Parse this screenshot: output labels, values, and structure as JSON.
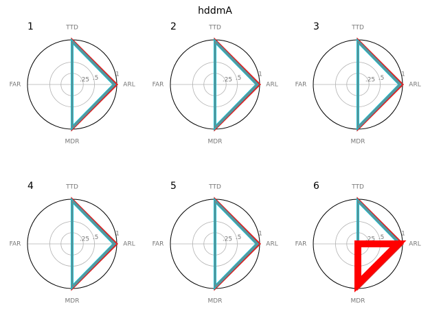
{
  "title": "hddmA",
  "chart_data": [
    {
      "type": "radar",
      "title": "1",
      "categories": [
        "TTD",
        "ARL",
        "MDR",
        "FAR"
      ],
      "ylim": [
        0,
        1
      ],
      "yticks": [
        {
          "value": 0.25,
          "label": ".25"
        },
        {
          "value": 0.5,
          "label": ".5"
        },
        1
      ],
      "series": [
        {
          "color": "#d62728",
          "width": 3,
          "values": [
            1,
            1,
            1,
            0
          ]
        },
        {
          "color": "#17becf",
          "width": 4,
          "values": [
            0.96,
            0.94,
            0.96,
            0
          ]
        },
        {
          "color": "#7f7f7f",
          "width": 1.5,
          "values": [
            0.96,
            0.94,
            0.96,
            0
          ]
        }
      ]
    },
    {
      "type": "radar",
      "title": "2",
      "categories": [
        "TTD",
        "ARL",
        "MDR",
        "FAR"
      ],
      "ylim": [
        0,
        1
      ],
      "yticks": [
        {
          "value": 0.25,
          "label": ".25"
        },
        {
          "value": 0.5,
          "label": ".5"
        },
        1
      ],
      "series": [
        {
          "color": "#d62728",
          "width": 3,
          "values": [
            1,
            1,
            1,
            0
          ]
        },
        {
          "color": "#17becf",
          "width": 4,
          "values": [
            0.96,
            0.94,
            0.96,
            0
          ]
        },
        {
          "color": "#7f7f7f",
          "width": 1.5,
          "values": [
            0.96,
            0.94,
            0.96,
            0
          ]
        }
      ]
    },
    {
      "type": "radar",
      "title": "3",
      "categories": [
        "TTD",
        "ARL",
        "MDR",
        "FAR"
      ],
      "ylim": [
        0,
        1
      ],
      "yticks": [
        {
          "value": 0.25,
          "label": ".25"
        },
        {
          "value": 0.5,
          "label": ".5"
        },
        1
      ],
      "series": [
        {
          "color": "#d62728",
          "width": 3,
          "values": [
            1,
            1,
            1,
            0
          ]
        },
        {
          "color": "#17becf",
          "width": 4,
          "values": [
            0.96,
            0.94,
            0.96,
            0
          ]
        },
        {
          "color": "#7f7f7f",
          "width": 1.5,
          "values": [
            0.96,
            0.94,
            0.96,
            0
          ]
        }
      ]
    },
    {
      "type": "radar",
      "title": "4",
      "categories": [
        "TTD",
        "ARL",
        "MDR",
        "FAR"
      ],
      "ylim": [
        0,
        1
      ],
      "yticks": [
        {
          "value": 0.25,
          "label": ".25"
        },
        {
          "value": 0.5,
          "label": ".5"
        },
        1
      ],
      "series": [
        {
          "color": "#d62728",
          "width": 3,
          "values": [
            1,
            1,
            1,
            0
          ]
        },
        {
          "color": "#17becf",
          "width": 4,
          "values": [
            0.96,
            0.94,
            0.96,
            0
          ]
        },
        {
          "color": "#7f7f7f",
          "width": 1.5,
          "values": [
            0.96,
            0.94,
            0.96,
            0
          ]
        }
      ]
    },
    {
      "type": "radar",
      "title": "5",
      "categories": [
        "TTD",
        "ARL",
        "MDR",
        "FAR"
      ],
      "ylim": [
        0,
        1
      ],
      "yticks": [
        {
          "value": 0.25,
          "label": ".25"
        },
        {
          "value": 0.5,
          "label": ".5"
        },
        1
      ],
      "series": [
        {
          "color": "#d62728",
          "width": 3,
          "values": [
            1,
            1,
            1,
            0
          ]
        },
        {
          "color": "#17becf",
          "width": 4,
          "values": [
            0.96,
            0.94,
            0.96,
            0
          ]
        },
        {
          "color": "#7f7f7f",
          "width": 1.5,
          "values": [
            0.96,
            0.94,
            0.96,
            0
          ]
        }
      ]
    },
    {
      "type": "radar",
      "title": "6",
      "categories": [
        "TTD",
        "ARL",
        "MDR",
        "FAR"
      ],
      "ylim": [
        0,
        1
      ],
      "yticks": [
        {
          "value": 0.25,
          "label": ".25"
        },
        {
          "value": 0.5,
          "label": ".5"
        },
        1
      ],
      "series": [
        {
          "color": "#d62728",
          "width": 3,
          "values": [
            1,
            1,
            1,
            0
          ]
        },
        {
          "color": "#17becf",
          "width": 4,
          "values": [
            0.96,
            0.94,
            0.96,
            0
          ]
        },
        {
          "color": "#7f7f7f",
          "width": 1.5,
          "values": [
            0.96,
            0.94,
            0.96,
            0
          ]
        },
        {
          "color": "#ff0000",
          "width": 10,
          "values": [
            0,
            0.9,
            0.9,
            0
          ]
        }
      ]
    }
  ]
}
